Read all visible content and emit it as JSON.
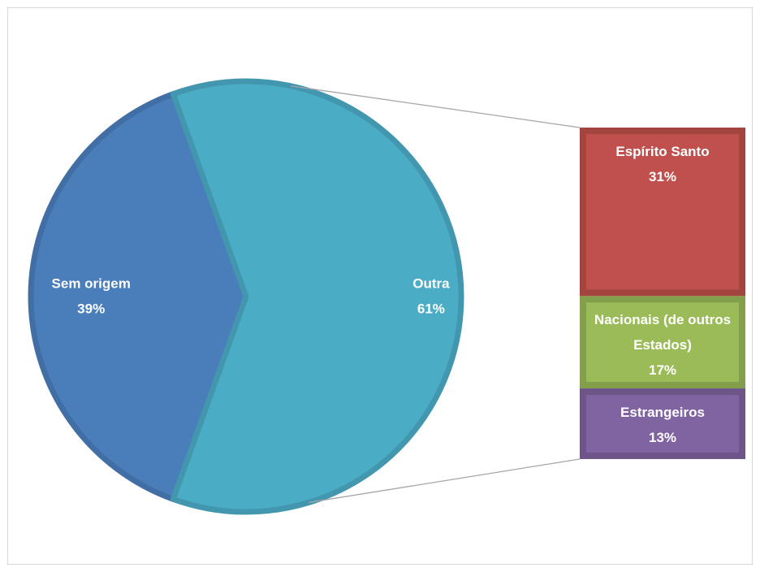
{
  "chart_data": {
    "type": "pie",
    "slices": {
      "categories": [
        "Sem origem",
        "Outra"
      ],
      "values": [
        39,
        61
      ],
      "value_labels": [
        "39%",
        "61%"
      ],
      "colors": [
        "#4a7ebb",
        "#4bacc6"
      ]
    },
    "breakdown": {
      "type": "bar",
      "categories": [
        "Espírito Santo",
        "Nacionais (de outros Estados)",
        "Estrangeiros"
      ],
      "values": [
        31,
        17,
        13
      ],
      "value_labels": [
        "31%",
        "17%",
        "13%"
      ],
      "colors": [
        "#c0504d",
        "#9bbb59",
        "#8064a2"
      ]
    }
  }
}
